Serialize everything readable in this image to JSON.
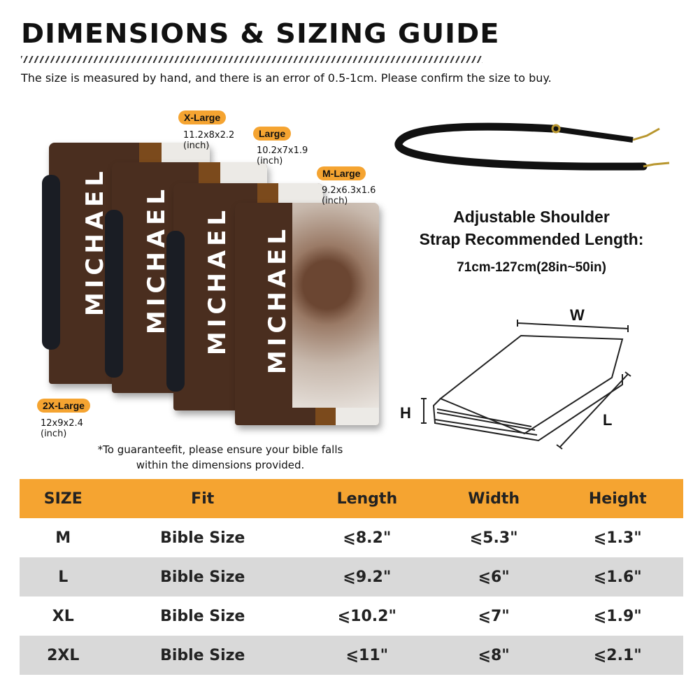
{
  "header": {
    "title": "DIMENSIONS & SIZING GUIDE",
    "note": "The size is measured by hand, and there is an error of 0.5-1cm. Please confirm the size to buy."
  },
  "sizes_labels": [
    {
      "label": "X-Large",
      "dims": "11.2x8x2.2",
      "unit": "(inch)"
    },
    {
      "label": "Large",
      "dims": "10.2x7x1.9",
      "unit": "(inch)"
    },
    {
      "label": "M-Large",
      "dims": "9.2x6.3x1.6",
      "unit": "(inch)"
    },
    {
      "label": "2X-Large",
      "dims": "12x9x2.4",
      "unit": "(inch)"
    }
  ],
  "cover_name": "MICHAEL",
  "strap": {
    "line1": "Adjustable Shoulder",
    "line2": "Strap Recommended Length:",
    "length": "71cm-127cm(28in~50in)"
  },
  "diagram": {
    "w": "W",
    "h": "H",
    "l": "L"
  },
  "guarantee": {
    "line1": "*To guaranteefit, please ensure your bible falls",
    "line2": "within the dimensions provided."
  },
  "table": {
    "headers": [
      "SIZE",
      "Fit",
      "Length",
      "Width",
      "Height"
    ],
    "rows": [
      [
        "M",
        "Bible Size",
        "⩽8.2\"",
        "⩽5.3\"",
        "⩽1.3\""
      ],
      [
        "L",
        "Bible Size",
        "⩽9.2\"",
        "⩽6\"",
        "⩽1.6\""
      ],
      [
        "XL",
        "Bible Size",
        "⩽10.2\"",
        "⩽7\"",
        "⩽1.9\""
      ],
      [
        "2XL",
        "Bible Size",
        "⩽11\"",
        "⩽8\"",
        "⩽2.1\""
      ]
    ]
  },
  "colors": {
    "accent": "#f5a431",
    "row_alt": "#d9d9d9",
    "leather": "#4a2e1f"
  }
}
